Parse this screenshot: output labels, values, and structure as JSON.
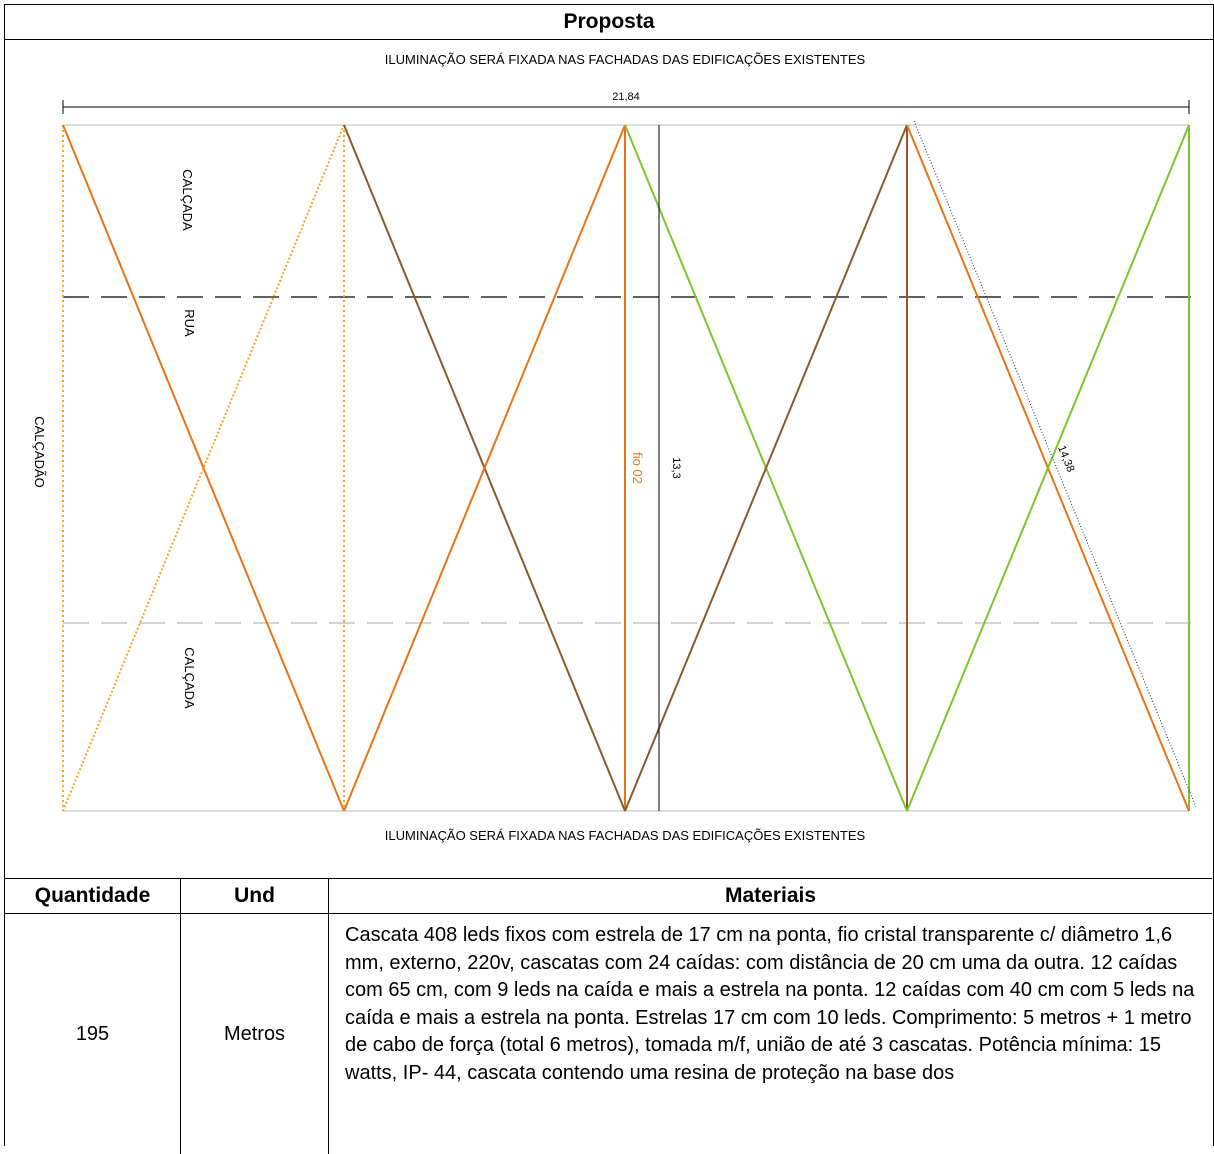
{
  "title": "Proposta",
  "drawing": {
    "note_top": "ILUMINAÇÃO SERÁ FIXADA NAS FACHADAS DAS EDIFICAÇÕES EXISTENTES",
    "note_bottom": "ILUMINAÇÃO SERÁ FIXADA NAS FACHADAS DAS EDIFICAÇÕES EXISTENTES",
    "dim_width": "21,84",
    "dim_height": "13,3",
    "dim_diagonal": "14,38",
    "label_wire": "fio 02",
    "label_calcada_top": "CALÇADA",
    "label_rua": "RUA",
    "label_calcadao": "CALÇADÃO",
    "label_calcada_bottom": "CALÇADA",
    "colors": {
      "orange_light": "#f5a623",
      "orange_dark": "#e8741a",
      "brown": "#8b5a2b",
      "green": "#7dc52e"
    }
  },
  "table": {
    "headers": {
      "quantidade": "Quantidade",
      "und": "Und",
      "materiais": "Materiais"
    },
    "rows": [
      {
        "quantidade": "195",
        "und": "Metros",
        "materiais": "Cascata 408 leds fixos com estrela de 17 cm na ponta, fio cristal transparente c/ diâmetro 1,6 mm, externo, 220v, cascatas com 24 caídas: com distância de 20 cm uma da outra. 12 caídas com 65 cm, com 9 leds na caída e mais a estrela na ponta. 12 caídas com 40 cm com 5 leds na caída e mais a estrela na ponta. Estrelas 17 cm com 10 leds. Comprimento: 5 metros + 1 metro de cabo de força (total 6 metros), tomada m/f, união de até 3 cascatas. Potência mínima: 15 watts, IP- 44, cascata contendo uma resina de proteção na base dos"
      }
    ]
  }
}
